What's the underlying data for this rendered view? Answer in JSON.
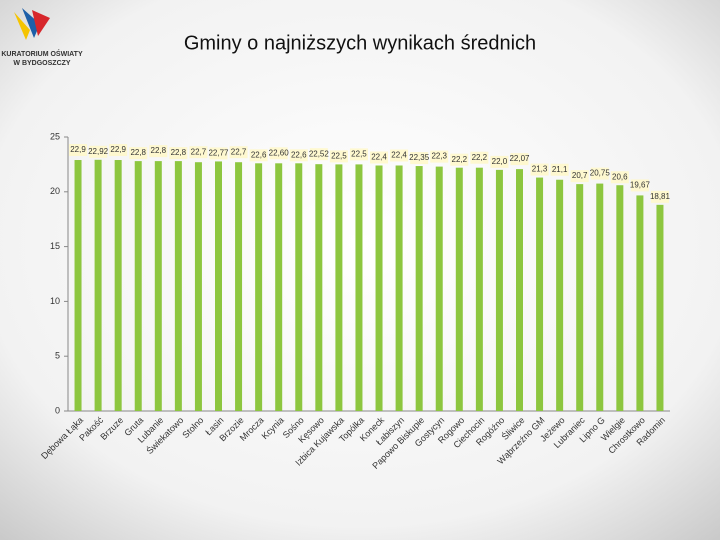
{
  "logo": {
    "line1": "KURATORIUM OŚWIATY",
    "line2": "W BYDGOSZCZY"
  },
  "chart_data": {
    "type": "bar",
    "title": "Gminy o najniższych wynikach średnich",
    "categories": [
      "Dębowa Łąka",
      "Pakość",
      "Brzuze",
      "Gruta",
      "Lubanie",
      "Świekatowo",
      "Stolno",
      "Łasin",
      "Brzozie",
      "Mrocza",
      "Kcynia",
      "Sośno",
      "Kęsowo",
      "Izbica Kujawska",
      "Topólka",
      "Koneck",
      "Łabiszyn",
      "Papowo Biskupie",
      "Gostycyn",
      "Rogowo",
      "Ciechocin",
      "Rogóźno",
      "Śliwice",
      "Wąbrzeźno GM",
      "Jeżewo",
      "Lubraniec",
      "Lipno G",
      "Wielgie",
      "Chrostkowo",
      "Radomin"
    ],
    "values": [
      22.9,
      22.92,
      22.9,
      22.8,
      22.8,
      22.8,
      22.7,
      22.77,
      22.7,
      22.6,
      22.6,
      22.6,
      22.52,
      22.5,
      22.5,
      22.4,
      22.4,
      22.35,
      22.3,
      22.2,
      22.2,
      22.0,
      22.07,
      21.3,
      21.1,
      20.7,
      20.75,
      20.6,
      19.67,
      18.81
    ],
    "value_labels": [
      "22,9",
      "22,92",
      "22,9",
      "22,8",
      "22,8",
      "22,8",
      "22,7",
      "22,77",
      "22,7",
      "22,6",
      "22,60",
      "22,6",
      "22,52",
      "22,5",
      "22,5",
      "22,4",
      "22,4",
      "22,35",
      "22,3",
      "22,2",
      "22,2",
      "22,0",
      "22,07",
      "21,3",
      "21,1",
      "20,7",
      "20,75",
      "20,6",
      "19,67",
      "18,81"
    ],
    "color": "#8dc63f",
    "ylim": [
      0,
      25
    ],
    "yticks": [
      0,
      5,
      10,
      15,
      20,
      25
    ],
    "grid": false
  }
}
